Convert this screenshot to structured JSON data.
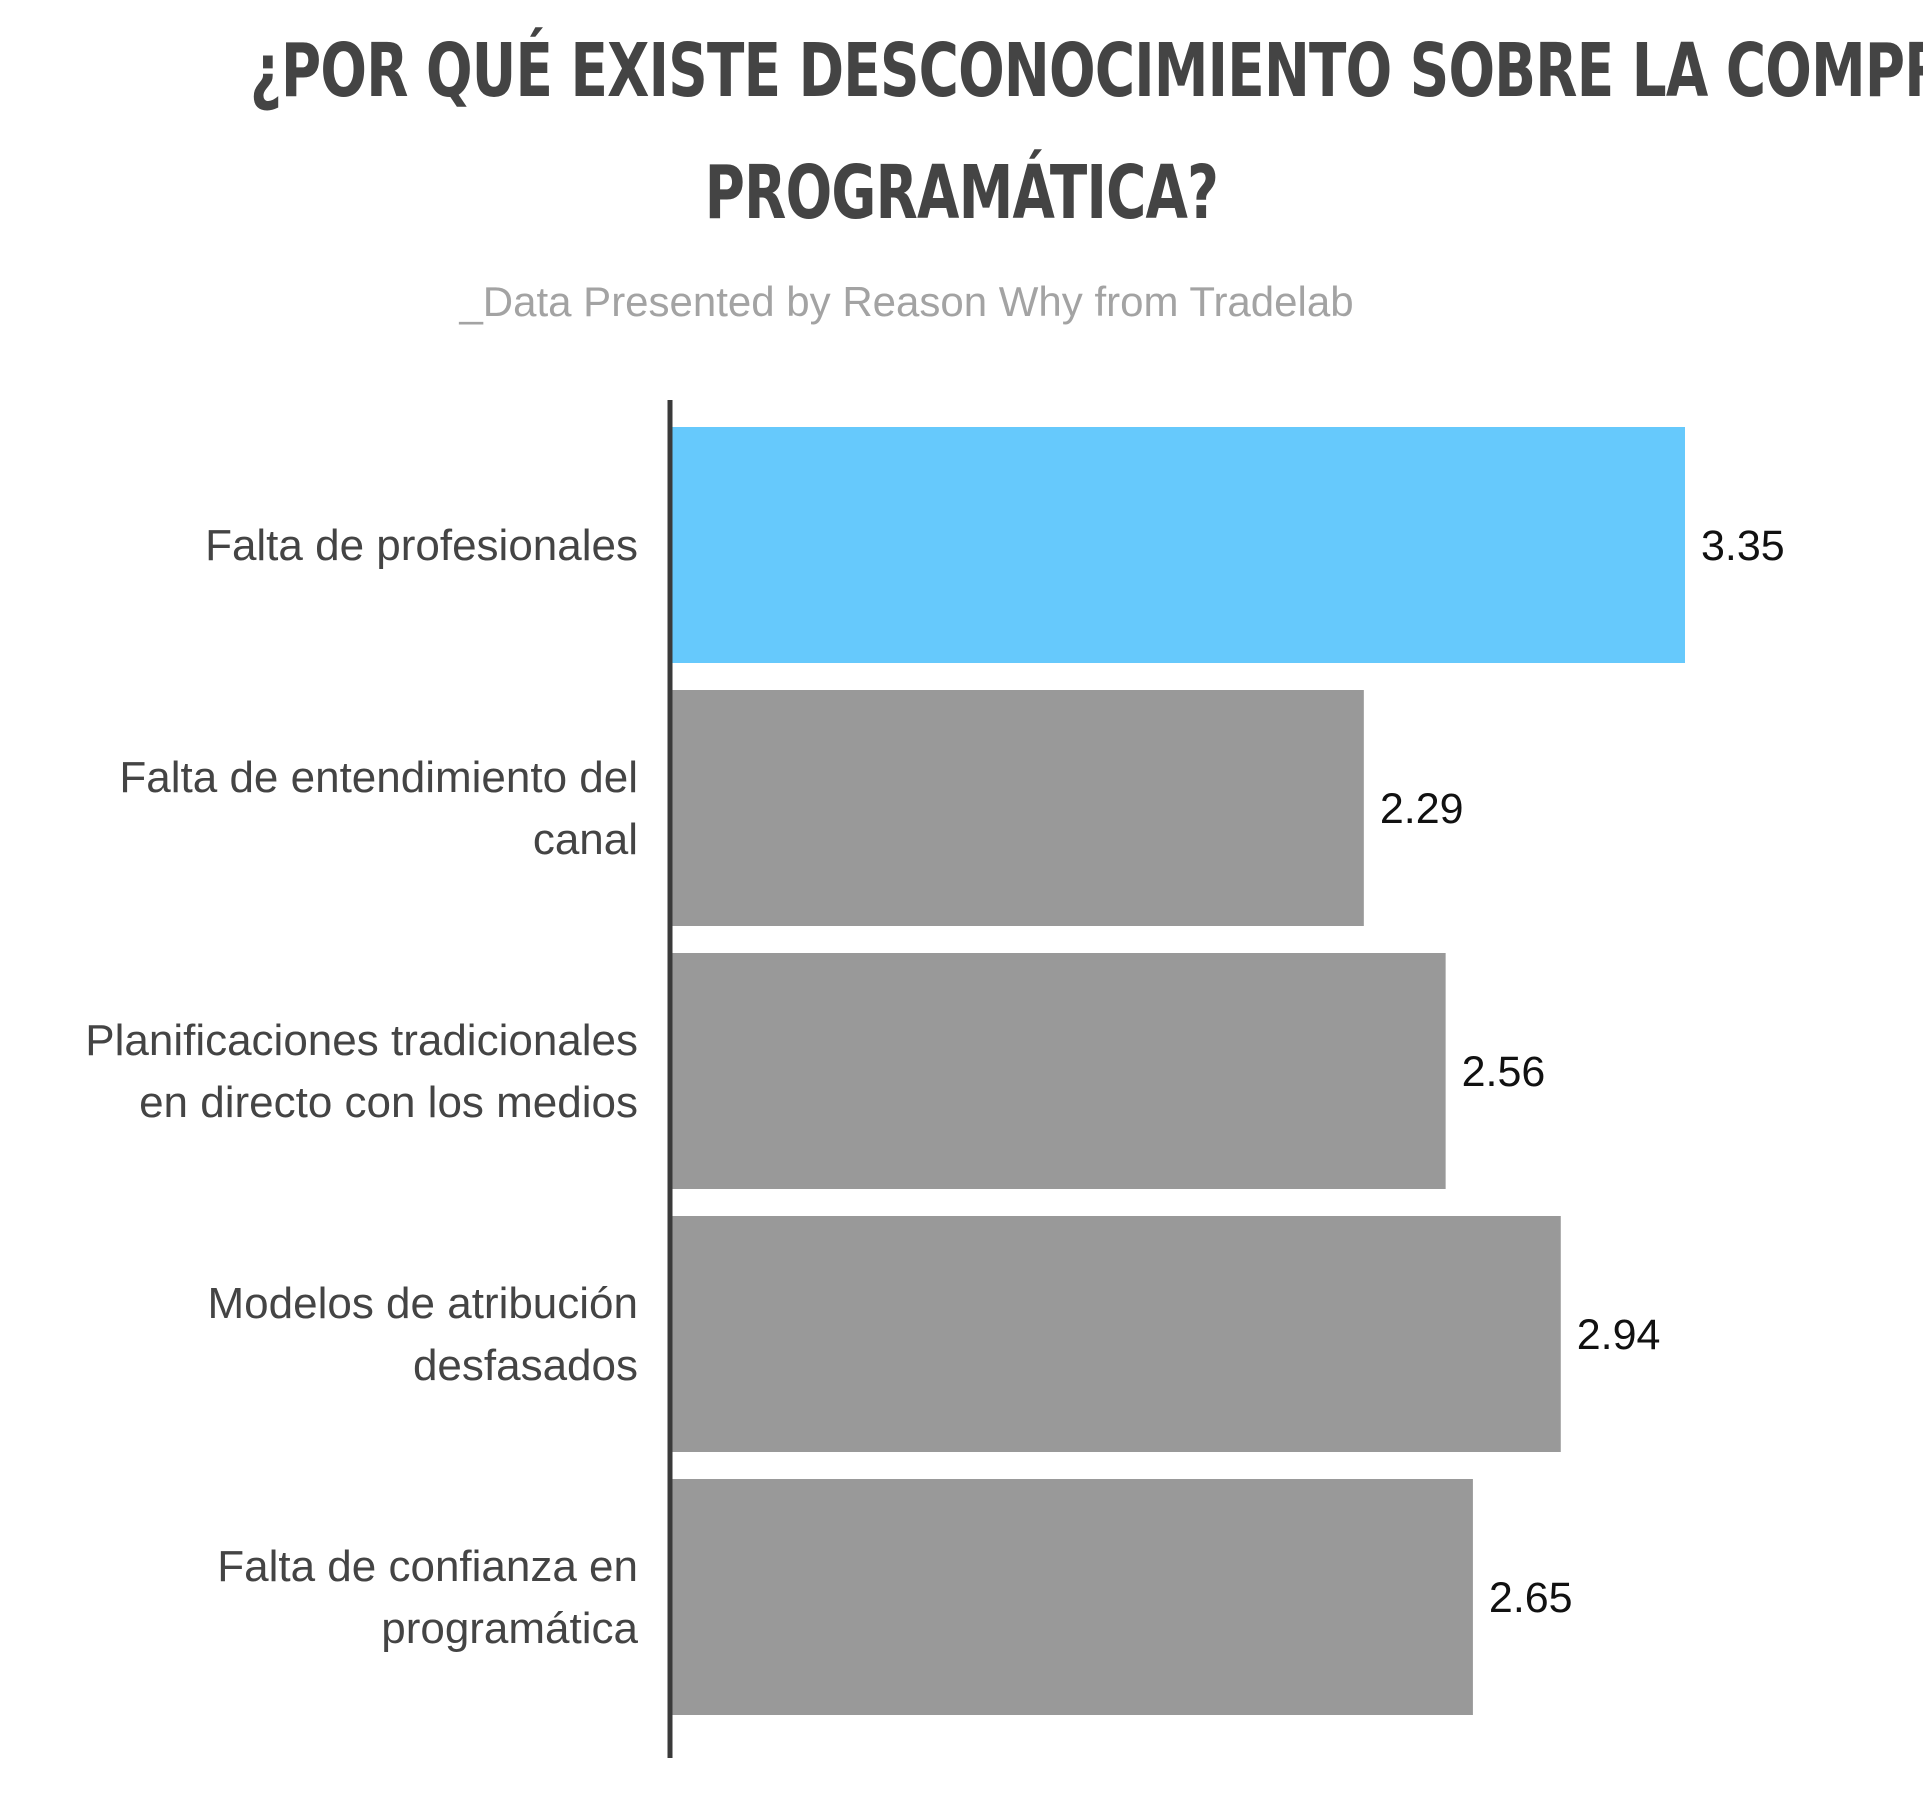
{
  "header": {
    "title_line1": "¿POR QUÉ EXISTE DESCONOCIMIENTO SOBRE LA COMPRA",
    "title_line2": "PROGRAMÁTICA?",
    "subtitle": "_Data Presented by Reason Why from Tradelab"
  },
  "colors": {
    "highlight": "#66c9fc",
    "bar": "#999999",
    "axis": "#3a3a3a",
    "title": "#444444",
    "subtitle": "#a3a3a3"
  },
  "chart_data": {
    "type": "bar",
    "orientation": "horizontal",
    "categories": [
      [
        "Falta de profesionales"
      ],
      [
        "Falta de entendimiento del",
        "canal"
      ],
      [
        "Planificaciones tradicionales",
        "en directo con los medios"
      ],
      [
        "Modelos de atribución",
        "desfasados"
      ],
      [
        "Falta de confianza en",
        "programática"
      ]
    ],
    "values": [
      3.35,
      2.29,
      2.56,
      2.94,
      2.65
    ],
    "value_labels": [
      "3.35",
      "2.29",
      "2.56",
      "2.94",
      "2.65"
    ],
    "highlight_index": 0,
    "xlim": [
      0,
      3.35
    ],
    "grid": false,
    "legend": "none"
  }
}
